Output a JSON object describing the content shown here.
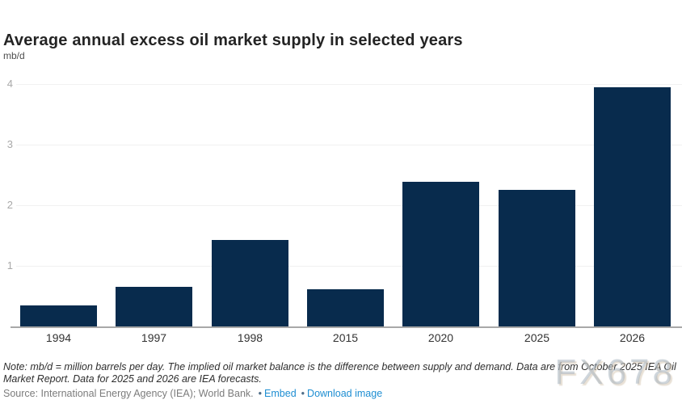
{
  "chart_data": {
    "type": "bar",
    "title": "Average annual excess oil market supply in selected years",
    "ylabel": "mb/d",
    "xlabel": "",
    "categories": [
      "1994",
      "1997",
      "1998",
      "2015",
      "2020",
      "2025",
      "2026"
    ],
    "values": [
      0.35,
      0.65,
      1.43,
      0.61,
      2.38,
      2.26,
      3.94
    ],
    "ylim": [
      0,
      4.2
    ],
    "yticks": [
      1,
      2,
      3,
      4
    ],
    "grid": true,
    "legend_position": "none",
    "bar_color": "#082b4d"
  },
  "footer": {
    "note": "Note: mb/d = million barrels per day. The implied oil market balance is the difference between supply and demand. Data are from October 2025 IEA Oil Market Report. Data for 2025 and 2026 are IEA forecasts.",
    "source": "Source: International Energy Agency (IEA); World Bank.",
    "bullet": "•",
    "links": [
      {
        "label": "Embed"
      },
      {
        "label": "Download image"
      }
    ]
  },
  "watermark": "FX678",
  "colors": {
    "bar": "#082b4d",
    "link": "#1e8ed2",
    "grid": "#f1f1f1",
    "axis_line": "#a8a8a8",
    "y_tick_label": "#a9a9a9",
    "x_tick_label": "#333333",
    "title": "#242424"
  }
}
